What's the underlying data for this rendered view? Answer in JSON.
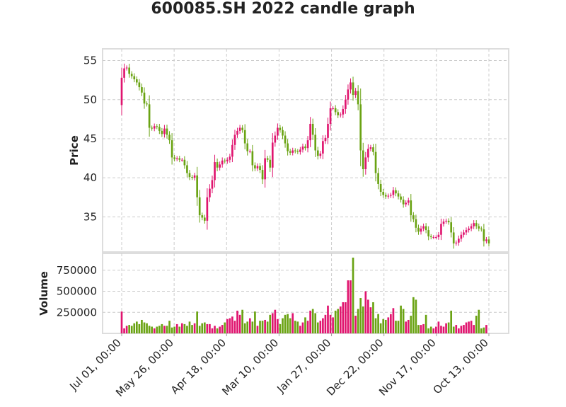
{
  "chart_data": {
    "type": "candlestick",
    "title": "600085.SH 2022 candle graph",
    "x_tick_labels": [
      "Jul 01, 00:00",
      "May 26, 00:00",
      "Apr 18, 00:00",
      "Mar 10, 00:00",
      "Jan 27, 00:00",
      "Dec 22, 00:00",
      "Nov 17, 00:00",
      "Oct 13, 00:00"
    ],
    "price_panel": {
      "ylabel": "Price",
      "ylim": [
        30.5,
        56.5
      ],
      "yticks": [
        35,
        40,
        45,
        50,
        55
      ]
    },
    "volume_panel": {
      "ylabel": "Volume",
      "ylim": [
        0,
        950000
      ],
      "yticks": [
        250000,
        500000,
        750000
      ],
      "ytick_labels": [
        "250000",
        "500000",
        "750000"
      ]
    },
    "grid": true,
    "up_color": "#e0156f",
    "down_color": "#6aa313",
    "close_series": [
      52.8,
      54.0,
      54.1,
      53.3,
      53.0,
      52.6,
      52.2,
      51.6,
      50.9,
      49.5,
      49.4,
      46.4,
      46.3,
      46.6,
      46.5,
      46.0,
      45.6,
      46.3,
      45.5,
      44.8,
      42.6,
      42.4,
      42.5,
      42.3,
      42.3,
      41.6,
      40.6,
      40.1,
      40.0,
      40.3,
      37.5,
      35.2,
      34.9,
      34.5,
      37.5,
      38.6,
      39.7,
      42.0,
      41.3,
      41.7,
      42.2,
      42.1,
      42.3,
      42.7,
      44.2,
      45.5,
      46.0,
      46.4,
      46.1,
      44.4,
      43.4,
      43.4,
      41.6,
      41.2,
      41.5,
      41.0,
      39.8,
      42.5,
      42.3,
      41.3,
      44.5,
      45.4,
      46.4,
      46.1,
      45.4,
      44.4,
      43.4,
      43.2,
      43.5,
      43.4,
      43.3,
      43.6,
      44.0,
      43.8,
      44.8,
      46.9,
      45.5,
      43.5,
      42.8,
      43.1,
      44.7,
      45.1,
      46.9,
      48.9,
      48.9,
      48.4,
      48.0,
      48.1,
      48.8,
      50.0,
      51.3,
      52.2,
      50.6,
      51.1,
      49.4,
      43.5,
      41.1,
      42.6,
      43.7,
      43.9,
      43.3,
      40.6,
      39.2,
      38.2,
      37.8,
      37.6,
      37.7,
      37.8,
      38.4,
      38.0,
      37.6,
      37.2,
      36.6,
      36.8,
      37.1,
      35.2,
      34.7,
      33.6,
      33.1,
      33.5,
      33.8,
      33.3,
      32.5,
      32.4,
      32.4,
      32.4,
      32.7,
      34.1,
      34.4,
      34.5,
      34.3,
      33.0,
      31.6,
      31.7,
      32.2,
      32.7,
      33.0,
      33.3,
      33.5,
      33.8,
      34.2,
      33.8,
      33.5,
      33.4,
      31.9,
      32.1,
      31.6
    ],
    "volume_series": [
      260000,
      60000,
      90000,
      100000,
      90000,
      120000,
      140000,
      110000,
      160000,
      130000,
      120000,
      90000,
      80000,
      60000,
      80000,
      90000,
      110000,
      90000,
      90000,
      150000,
      70000,
      80000,
      110000,
      80000,
      120000,
      110000,
      90000,
      140000,
      100000,
      120000,
      260000,
      90000,
      120000,
      130000,
      110000,
      110000,
      60000,
      90000,
      60000,
      80000,
      100000,
      130000,
      170000,
      180000,
      200000,
      150000,
      270000,
      220000,
      280000,
      120000,
      140000,
      180000,
      140000,
      260000,
      90000,
      150000,
      150000,
      160000,
      140000,
      220000,
      240000,
      280000,
      170000,
      110000,
      180000,
      220000,
      230000,
      180000,
      240000,
      150000,
      140000,
      90000,
      130000,
      190000,
      150000,
      270000,
      290000,
      240000,
      130000,
      150000,
      180000,
      220000,
      330000,
      220000,
      190000,
      270000,
      290000,
      320000,
      370000,
      370000,
      630000,
      630000,
      900000,
      210000,
      290000,
      420000,
      320000,
      500000,
      400000,
      310000,
      370000,
      180000,
      230000,
      120000,
      170000,
      160000,
      190000,
      230000,
      300000,
      150000,
      150000,
      330000,
      290000,
      140000,
      160000,
      210000,
      430000,
      400000,
      100000,
      100000,
      110000,
      220000,
      60000,
      80000,
      60000,
      80000,
      140000,
      90000,
      80000,
      120000,
      130000,
      270000,
      80000,
      100000,
      60000,
      90000,
      100000,
      130000,
      140000,
      150000,
      100000,
      210000,
      280000,
      60000,
      70000,
      100000
    ]
  }
}
